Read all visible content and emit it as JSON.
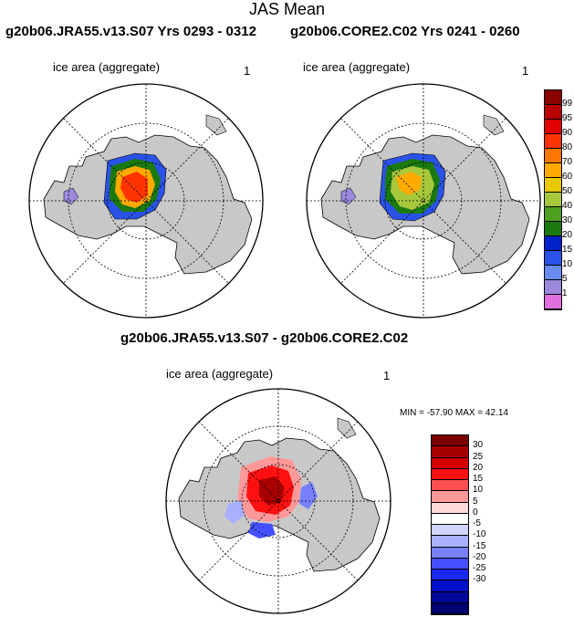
{
  "title": "JAS Mean",
  "panels": [
    {
      "title": "g20b06.JRA55.v13.S07  Yrs 0293 - 0312",
      "variable": "ice area  (aggregate)",
      "units": "1"
    },
    {
      "title": "g20b06.CORE2.C02  Yrs 0241 - 0260",
      "variable": "ice area  (aggregate)",
      "units": "1"
    }
  ],
  "diff_panel": {
    "title": "g20b06.JRA55.v13.S07 - g20b06.CORE2.C02",
    "variable": "ice area  (aggregate)",
    "units": "1",
    "minmax": "MIN = -57.90 MAX =  42.14"
  },
  "colorbar_top": {
    "labels": [
      "99",
      "95",
      "90",
      "80",
      "70",
      "60",
      "50",
      "40",
      "30",
      "20",
      "15",
      "10",
      "5",
      "1"
    ],
    "colors": [
      "#8b0000",
      "#b80000",
      "#e00000",
      "#ff3300",
      "#ff7700",
      "#ffaa00",
      "#e8c800",
      "#a8c83c",
      "#50a020",
      "#1a7a10",
      "#0020c8",
      "#2a52e8",
      "#6a8cf0",
      "#9c88dc",
      "#e070e0"
    ]
  },
  "colorbar_diff": {
    "labels": [
      "30",
      "25",
      "20",
      "15",
      "10",
      "5",
      "0",
      "-5",
      "-10",
      "-15",
      "-20",
      "-25",
      "-30"
    ],
    "colors": [
      "#7a0000",
      "#a80000",
      "#d40000",
      "#ff1010",
      "#ff5050",
      "#ff9898",
      "#ffd8d8",
      "#ffffff",
      "#d0d4ff",
      "#a8b0ff",
      "#7880ff",
      "#4450ff",
      "#1a28f0",
      "#0010c8",
      "#00089a",
      "#000070"
    ]
  }
}
